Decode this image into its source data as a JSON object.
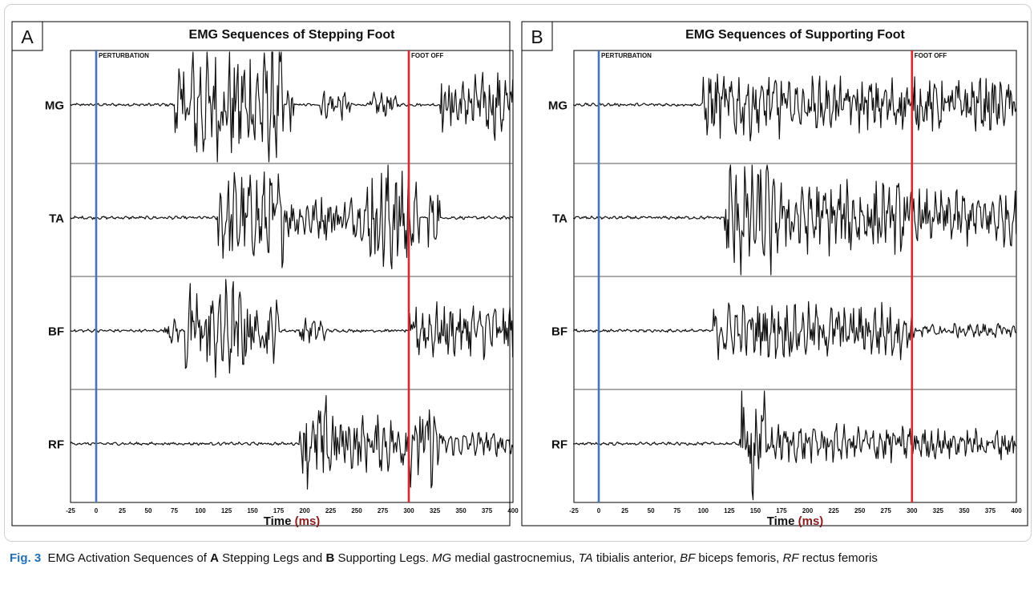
{
  "chart_data": [
    {
      "type": "line",
      "panel_label": "A",
      "title": "EMG Sequences of Stepping Foot",
      "xlabel_main": "Time",
      "xlabel_unit": "(ms)",
      "xlim": [
        -25,
        400
      ],
      "xticks": [
        "-25",
        "0",
        "25",
        "50",
        "75",
        "100",
        "125",
        "150",
        "175",
        "200",
        "225",
        "250",
        "275",
        "300",
        "325",
        "350",
        "375",
        "400"
      ],
      "events": [
        {
          "label": "PERTURBATION",
          "x": 0,
          "color": "#4a72b8"
        },
        {
          "label": "FOOT OFF",
          "x": 300,
          "color": "#e0262b"
        }
      ],
      "series": [
        {
          "name": "MG",
          "bursts": [
            [
              75,
              180,
              1.0
            ],
            [
              183,
              190,
              0.45
            ],
            [
              215,
              245,
              0.25
            ],
            [
              262,
              290,
              0.2
            ],
            [
              330,
              400,
              0.55
            ]
          ]
        },
        {
          "name": "TA",
          "bursts": [
            [
              115,
              180,
              0.75
            ],
            [
              180,
              260,
              0.35
            ],
            [
              260,
              302,
              1.0
            ],
            [
              302,
              310,
              0.6
            ],
            [
              318,
              330,
              0.5
            ]
          ]
        },
        {
          "name": "BF",
          "bursts": [
            [
              65,
              80,
              0.2
            ],
            [
              85,
              150,
              0.8
            ],
            [
              150,
              175,
              0.5
            ],
            [
              195,
              220,
              0.2
            ],
            [
              300,
              400,
              0.45
            ]
          ]
        },
        {
          "name": "RF",
          "bursts": [
            [
              195,
              230,
              0.75
            ],
            [
              230,
              300,
              0.45
            ],
            [
              300,
              330,
              0.7
            ],
            [
              330,
              400,
              0.2
            ]
          ]
        }
      ]
    },
    {
      "type": "line",
      "panel_label": "B",
      "title": "EMG Sequences of Supporting Foot",
      "xlabel_main": "Time",
      "xlabel_unit": "(ms)",
      "xlim": [
        -25,
        400
      ],
      "xticks": [
        "-25",
        "0",
        "25",
        "50",
        "75",
        "100",
        "125",
        "150",
        "175",
        "200",
        "225",
        "250",
        "275",
        "300",
        "325",
        "350",
        "375",
        "400"
      ],
      "events": [
        {
          "label": "PERTURBATION",
          "x": 0,
          "color": "#4a72b8"
        },
        {
          "label": "FOOT OFF",
          "x": 300,
          "color": "#e0262b"
        }
      ],
      "series": [
        {
          "name": "MG",
          "bursts": [
            [
              100,
              175,
              0.55
            ],
            [
              175,
              300,
              0.45
            ],
            [
              300,
              400,
              0.45
            ]
          ]
        },
        {
          "name": "TA",
          "bursts": [
            [
              120,
              165,
              1.0
            ],
            [
              165,
              300,
              0.6
            ],
            [
              300,
              400,
              0.45
            ]
          ]
        },
        {
          "name": "BF",
          "bursts": [
            [
              110,
              300,
              0.45
            ],
            [
              300,
              400,
              0.12
            ]
          ]
        },
        {
          "name": "RF",
          "bursts": [
            [
              135,
              160,
              0.9
            ],
            [
              160,
              300,
              0.3
            ],
            [
              300,
              400,
              0.25
            ]
          ]
        }
      ]
    }
  ],
  "caption": {
    "fig": "Fig. 3",
    "p1": "EMG Activation Sequences of ",
    "a": "A",
    "p2": " Stepping Legs and ",
    "b": "B",
    "p3": " Supporting Legs. ",
    "mg": "MG",
    "mg_d": " medial gastrocnemius, ",
    "ta": "TA",
    "ta_d": " tibialis anterior, ",
    "bf": "BF",
    "bf_d": " biceps femoris, ",
    "rf": "RF",
    "rf_d": " rectus femoris"
  }
}
